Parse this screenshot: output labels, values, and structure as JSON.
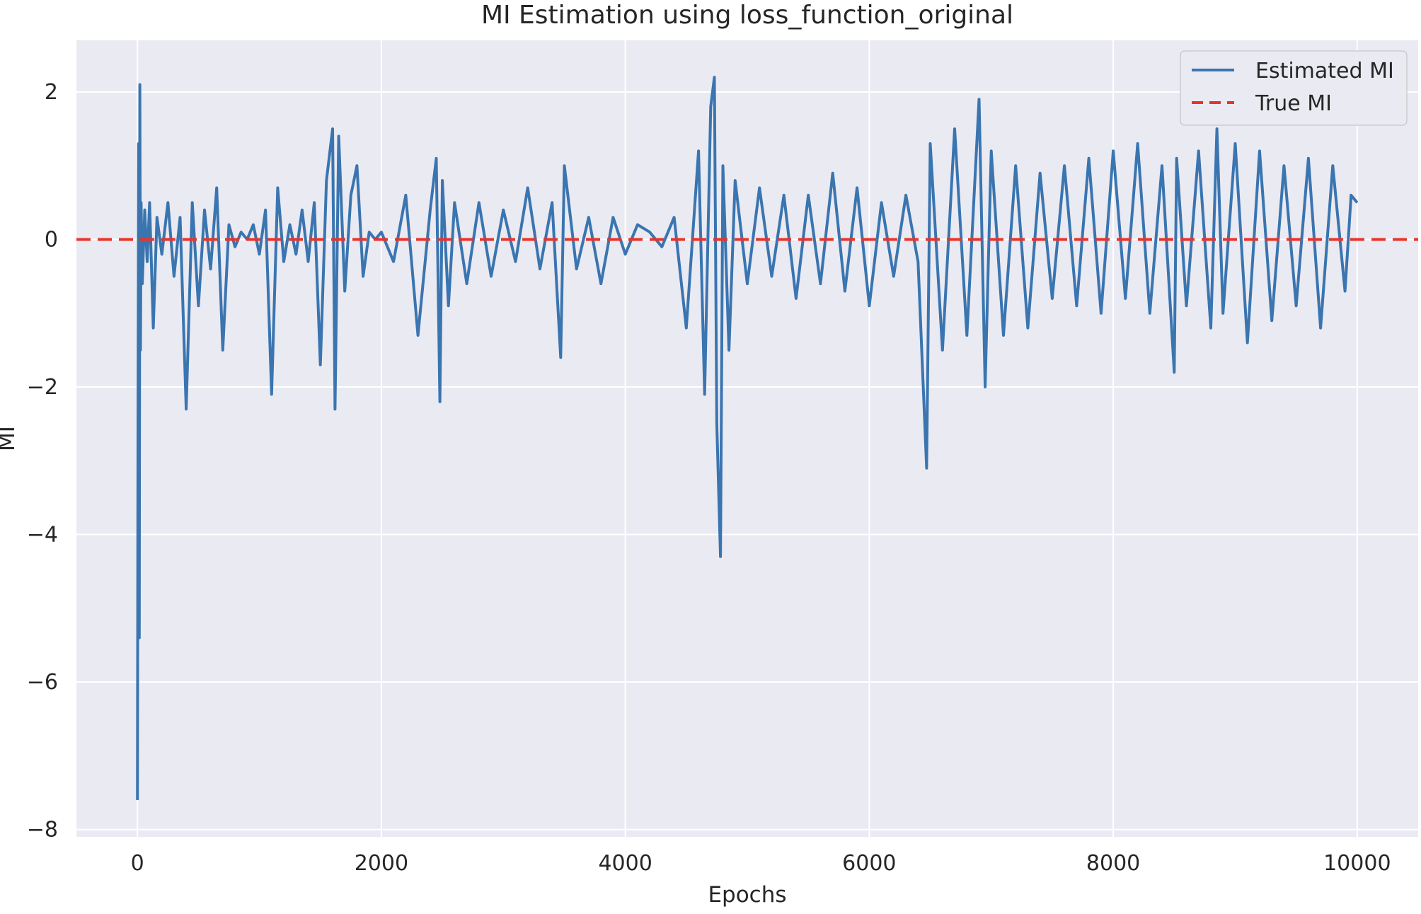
{
  "chart_data": {
    "type": "line",
    "title": "MI Estimation using loss_function_original",
    "xlabel": "Epochs",
    "ylabel": "MI",
    "xlim": [
      -500,
      10500
    ],
    "ylim": [
      -8.1,
      2.7
    ],
    "xticks": [
      0,
      2000,
      4000,
      6000,
      8000,
      10000
    ],
    "yticks": [
      2,
      0,
      -2,
      -4,
      -6,
      -8
    ],
    "xtick_labels": [
      "0",
      "2000",
      "4000",
      "6000",
      "8000",
      "10000"
    ],
    "ytick_labels": [
      "2",
      "0",
      "−2",
      "−4",
      "−6",
      "−8"
    ],
    "grid": true,
    "legend_position": "top-right",
    "style": {
      "background": "#eaeaf2",
      "grid_color": "#ffffff"
    },
    "series": [
      {
        "name": "Estimated MI",
        "kind": "line",
        "color": "#3a75b0",
        "x": [
          0,
          5,
          10,
          15,
          20,
          25,
          30,
          40,
          60,
          80,
          100,
          130,
          160,
          200,
          250,
          300,
          350,
          400,
          450,
          500,
          550,
          600,
          650,
          700,
          750,
          800,
          850,
          900,
          950,
          1000,
          1050,
          1100,
          1150,
          1200,
          1250,
          1300,
          1350,
          1400,
          1450,
          1500,
          1550,
          1600,
          1620,
          1650,
          1700,
          1750,
          1800,
          1850,
          1900,
          1950,
          2000,
          2100,
          2200,
          2300,
          2400,
          2450,
          2480,
          2500,
          2550,
          2600,
          2700,
          2800,
          2900,
          3000,
          3100,
          3200,
          3300,
          3400,
          3470,
          3500,
          3600,
          3700,
          3800,
          3900,
          4000,
          4100,
          4200,
          4300,
          4400,
          4500,
          4600,
          4650,
          4700,
          4730,
          4750,
          4780,
          4800,
          4850,
          4900,
          5000,
          5100,
          5200,
          5300,
          5400,
          5500,
          5600,
          5700,
          5800,
          5900,
          6000,
          6100,
          6200,
          6300,
          6400,
          6470,
          6500,
          6600,
          6700,
          6800,
          6900,
          6950,
          7000,
          7100,
          7200,
          7300,
          7400,
          7500,
          7600,
          7700,
          7800,
          7900,
          8000,
          8100,
          8200,
          8300,
          8400,
          8500,
          8520,
          8600,
          8700,
          8800,
          8850,
          8900,
          9000,
          9100,
          9200,
          9300,
          9400,
          9500,
          9600,
          9700,
          9800,
          9900,
          9950,
          10000
        ],
        "y": [
          -7.6,
          -2.5,
          1.3,
          -5.4,
          2.1,
          -1.5,
          0.5,
          -0.6,
          0.4,
          -0.3,
          0.5,
          -1.2,
          0.3,
          -0.2,
          0.5,
          -0.5,
          0.3,
          -2.3,
          0.5,
          -0.9,
          0.4,
          -0.4,
          0.7,
          -1.5,
          0.2,
          -0.1,
          0.1,
          0.0,
          0.2,
          -0.2,
          0.4,
          -2.1,
          0.7,
          -0.3,
          0.2,
          -0.2,
          0.4,
          -0.3,
          0.5,
          -1.7,
          0.8,
          1.5,
          -2.3,
          1.4,
          -0.7,
          0.6,
          1.0,
          -0.5,
          0.1,
          0.0,
          0.1,
          -0.3,
          0.6,
          -1.3,
          0.4,
          1.1,
          -2.2,
          0.8,
          -0.9,
          0.5,
          -0.6,
          0.5,
          -0.5,
          0.4,
          -0.3,
          0.7,
          -0.4,
          0.5,
          -1.6,
          1.0,
          -0.4,
          0.3,
          -0.6,
          0.3,
          -0.2,
          0.2,
          0.1,
          -0.1,
          0.3,
          -1.2,
          1.2,
          -2.1,
          1.8,
          2.2,
          -2.5,
          -4.3,
          1.0,
          -1.5,
          0.8,
          -0.6,
          0.7,
          -0.5,
          0.6,
          -0.8,
          0.6,
          -0.6,
          0.9,
          -0.7,
          0.7,
          -0.9,
          0.5,
          -0.5,
          0.6,
          -0.3,
          -3.1,
          1.3,
          -1.5,
          1.5,
          -1.3,
          1.9,
          -2.0,
          1.2,
          -1.3,
          1.0,
          -1.2,
          0.9,
          -0.8,
          1.0,
          -0.9,
          1.1,
          -1.0,
          1.2,
          -0.8,
          1.3,
          -1.0,
          1.0,
          -1.8,
          1.1,
          -0.9,
          1.2,
          -1.2,
          1.5,
          -1.0,
          1.3,
          -1.4,
          1.2,
          -1.1,
          1.0,
          -0.9,
          1.1,
          -1.2,
          1.0,
          -0.7,
          0.6,
          0.5
        ]
      },
      {
        "name": "True MI",
        "kind": "hline",
        "value": 0,
        "color": "#e8342a",
        "dash": "dashed"
      }
    ]
  }
}
